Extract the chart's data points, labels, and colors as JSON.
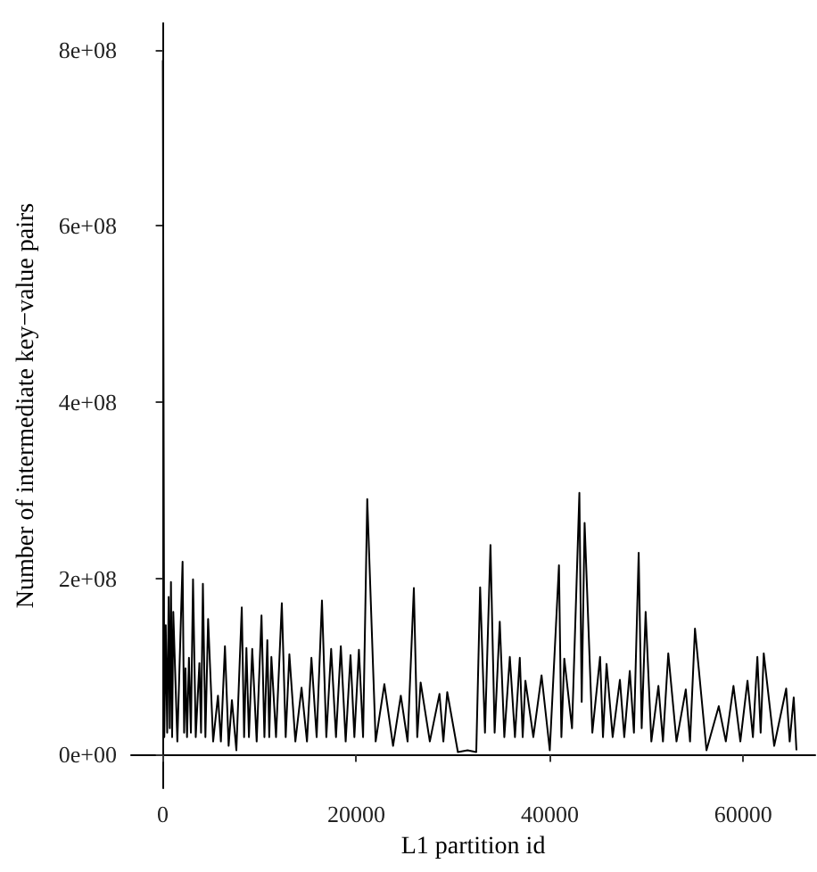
{
  "chart_data": {
    "type": "line",
    "xlabel": "L1 partition id",
    "ylabel": "Number of intermediate key−value pairs",
    "xlim": [
      -3280,
      67440
    ],
    "ylim": [
      -38000000,
      830000000
    ],
    "xticks": [
      0,
      20000,
      40000,
      60000
    ],
    "yticks": [
      {
        "value": 0,
        "label": "0e+00"
      },
      {
        "value": 200000000,
        "label": "2e+08"
      },
      {
        "value": 400000000,
        "label": "4e+08"
      },
      {
        "value": 600000000,
        "label": "6e+08"
      },
      {
        "value": 800000000,
        "label": "8e+08"
      }
    ],
    "marker": "none",
    "line_style": "solid",
    "series": [
      {
        "color": "#000000",
        "x": [
          0,
          150,
          300,
          450,
          600,
          720,
          840,
          960,
          1080,
          1500,
          2040,
          2200,
          2340,
          2500,
          2700,
          2900,
          3120,
          3400,
          3780,
          3950,
          4140,
          4400,
          4680,
          5200,
          5700,
          6000,
          6420,
          6800,
          7140,
          7600,
          8160,
          8400,
          8640,
          8900,
          9240,
          9700,
          10200,
          10500,
          10800,
          11000,
          11220,
          11700,
          12300,
          12700,
          13080,
          13700,
          14340,
          14900,
          15360,
          15900,
          16450,
          16900,
          17400,
          17900,
          18400,
          18900,
          19400,
          19800,
          20270,
          20700,
          21130,
          22000,
          22900,
          23800,
          24600,
          25300,
          25950,
          26300,
          26650,
          27600,
          28600,
          29000,
          29400,
          30500,
          31500,
          32400,
          32800,
          33300,
          33870,
          34300,
          34830,
          35300,
          35870,
          36400,
          36900,
          37200,
          37480,
          38300,
          39150,
          40000,
          40950,
          41200,
          41500,
          42300,
          43060,
          43300,
          43600,
          44400,
          45200,
          45500,
          45870,
          46500,
          47250,
          47700,
          48270,
          48700,
          49190,
          49500,
          49910,
          50500,
          51230,
          51700,
          52250,
          53100,
          54060,
          54500,
          55010,
          56200,
          57470,
          58200,
          58990,
          59700,
          60440,
          61000,
          61460,
          61800,
          62120,
          63200,
          64440,
          64800,
          65220,
          65500
        ],
        "values": [
          788000000,
          20000000,
          147000000,
          25000000,
          179000000,
          30000000,
          196000000,
          20000000,
          162000000,
          15000000,
          219000000,
          25000000,
          98000000,
          20000000,
          110000000,
          25000000,
          199000000,
          20000000,
          104000000,
          25000000,
          194000000,
          20000000,
          154000000,
          15000000,
          67000000,
          15000000,
          123000000,
          10000000,
          62000000,
          5000000,
          167000000,
          20000000,
          121000000,
          20000000,
          120000000,
          15000000,
          158000000,
          20000000,
          130000000,
          20000000,
          111000000,
          20000000,
          172000000,
          20000000,
          114000000,
          15000000,
          76000000,
          15000000,
          110000000,
          20000000,
          175000000,
          20000000,
          120000000,
          20000000,
          123000000,
          15000000,
          113000000,
          20000000,
          119000000,
          20000000,
          290000000,
          15000000,
          80000000,
          10000000,
          67000000,
          15000000,
          189000000,
          20000000,
          82000000,
          15000000,
          69000000,
          15000000,
          71000000,
          3000000,
          5000000,
          3000000,
          190000000,
          25000000,
          238000000,
          25000000,
          151000000,
          20000000,
          111000000,
          20000000,
          110000000,
          20000000,
          84000000,
          20000000,
          90000000,
          5000000,
          215000000,
          20000000,
          109000000,
          30000000,
          297000000,
          60000000,
          263000000,
          25000000,
          111000000,
          20000000,
          103000000,
          20000000,
          85000000,
          20000000,
          95000000,
          25000000,
          229000000,
          30000000,
          162000000,
          15000000,
          78000000,
          15000000,
          115000000,
          15000000,
          74000000,
          15000000,
          143000000,
          5000000,
          55000000,
          15000000,
          78000000,
          15000000,
          84000000,
          20000000,
          111000000,
          25000000,
          115000000,
          10000000,
          75000000,
          15000000,
          65000000,
          5000000
        ]
      }
    ]
  }
}
